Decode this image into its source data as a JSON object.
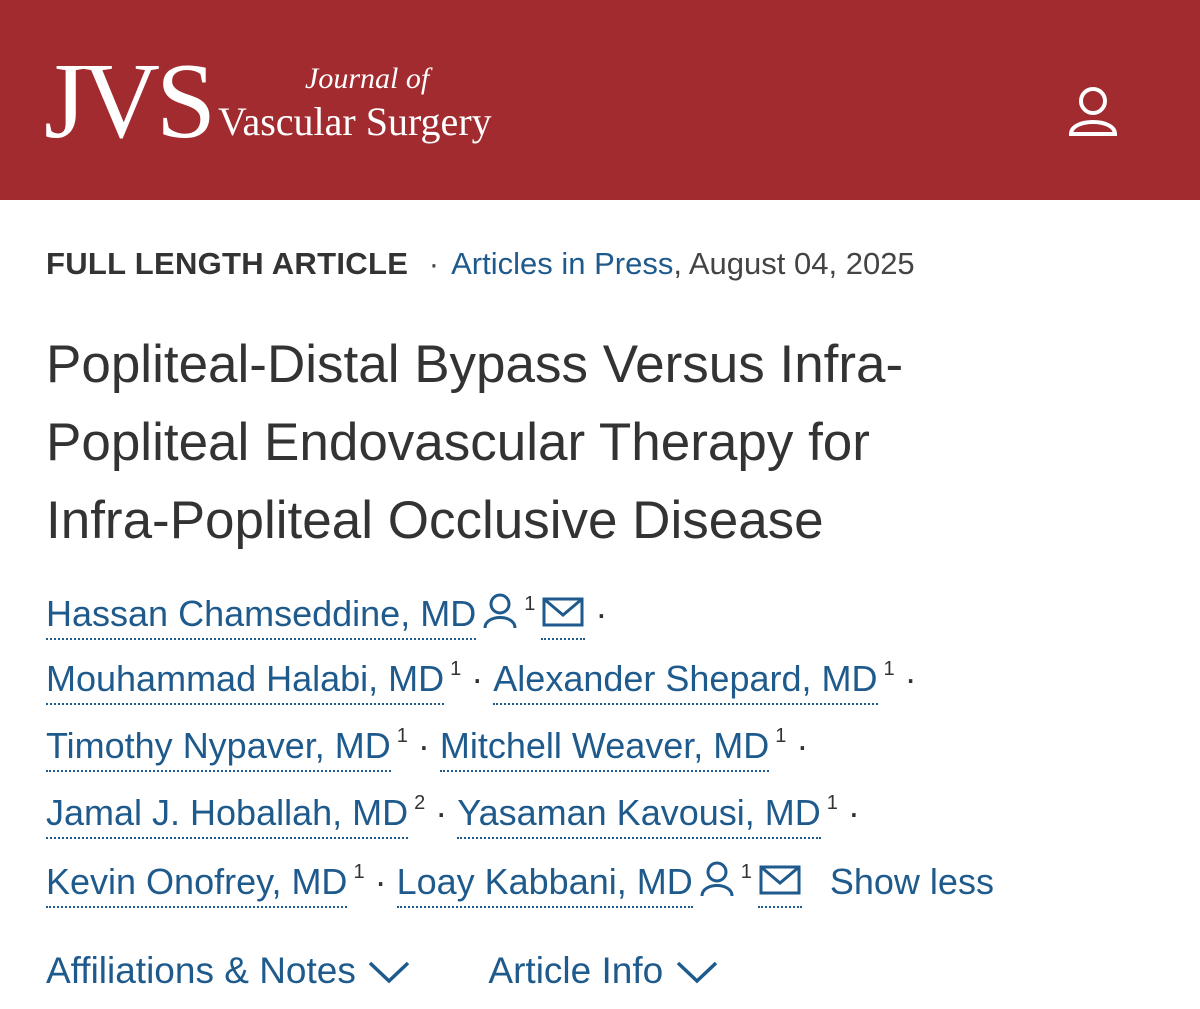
{
  "header": {
    "logo": "JVS",
    "journal_line1": "Journal of",
    "journal_line2": "Vascular Surgery"
  },
  "article": {
    "type": "FULL LENGTH ARTICLE",
    "separator": "·",
    "section": "Articles in Press",
    "date": ", August 04, 2025",
    "title_lines": [
      "Popliteal-Distal Bypass Versus Infra-",
      "Popliteal Endovascular Therapy for",
      "Infra-Popliteal Occlusive Disease"
    ],
    "author_rows": [
      [
        {
          "name": "Hassan Chamseddine, MD",
          "aff": "1",
          "corresponding": true
        }
      ],
      [
        {
          "name": "Mouhammad Halabi, MD",
          "aff": "1"
        },
        {
          "name": "Alexander Shepard, MD",
          "aff": "1"
        }
      ],
      [
        {
          "name": "Timothy Nypaver, MD",
          "aff": "1"
        },
        {
          "name": "Mitchell Weaver, MD",
          "aff": "1"
        }
      ],
      [
        {
          "name": "Jamal J. Hoballah, MD",
          "aff": "2"
        },
        {
          "name": "Yasaman Kavousi, MD",
          "aff": "1"
        }
      ],
      [
        {
          "name": "Kevin Onofrey, MD",
          "aff": "1"
        },
        {
          "name": "Loay Kabbani, MD",
          "aff": "1",
          "corresponding": true
        }
      ]
    ],
    "show_less": "Show less",
    "affiliations": "Affiliations & Notes",
    "article_info": "Article Info"
  }
}
